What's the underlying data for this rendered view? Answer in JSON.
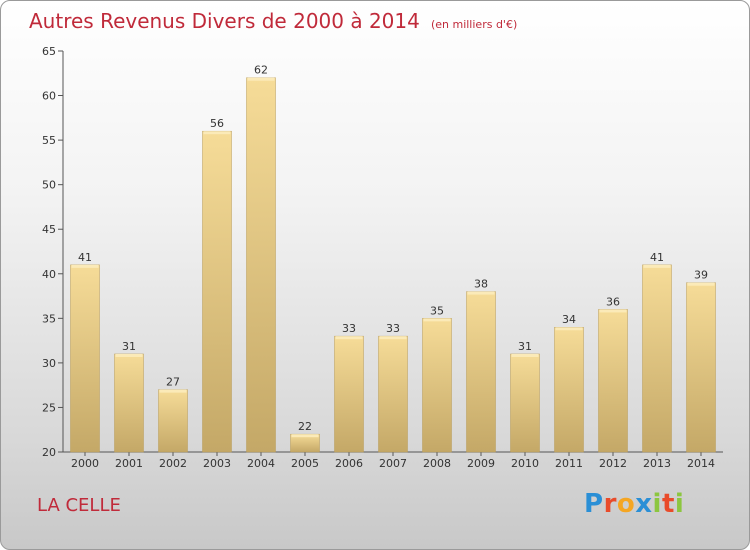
{
  "chart_data": {
    "type": "bar",
    "title": "Autres Revenus Divers de 2000 à 2014",
    "subtitle": "(en milliers d'€)",
    "categories": [
      "2000",
      "2001",
      "2002",
      "2003",
      "2004",
      "2005",
      "2006",
      "2007",
      "2008",
      "2009",
      "2010",
      "2011",
      "2012",
      "2013",
      "2014"
    ],
    "values": [
      41,
      31,
      27,
      56,
      62,
      22,
      33,
      33,
      35,
      38,
      31,
      34,
      36,
      41,
      39
    ],
    "ylim": [
      20,
      65
    ],
    "yticks": [
      20,
      25,
      30,
      35,
      40,
      45,
      50,
      55,
      60,
      65
    ],
    "grid": false,
    "bar_color": "#ddc27e"
  },
  "footer": {
    "city": "LA CELLE",
    "logo_letters": [
      "P",
      "r",
      "o",
      "x",
      "i",
      "t",
      "i"
    ]
  },
  "colors": {
    "title": "#c02a3a",
    "city": "#c02a3a"
  }
}
